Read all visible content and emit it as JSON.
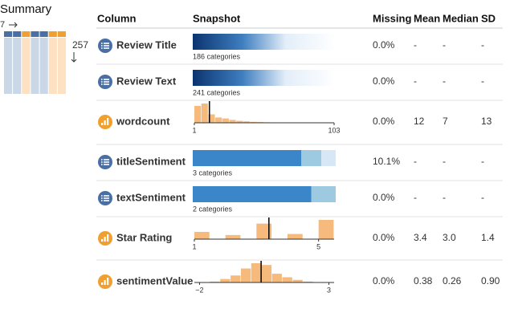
{
  "summary": {
    "title": "Summary",
    "columns": "7",
    "rows": "257"
  },
  "header": [
    "Column",
    "Snapshot",
    "Missing",
    "Mean",
    "Median",
    "SD"
  ],
  "colors": {
    "categorical": "#4a6fa5",
    "numeric": "#f0a030",
    "categorical_light": "#c9d7e6",
    "numeric_light": "#fde1c2",
    "histogram": "#f5ba7c",
    "segments": [
      "#3a86c8",
      "#9ecae1",
      "#d8e7f5"
    ]
  },
  "rows": [
    {
      "name": "Review Title",
      "type": "categorical",
      "categories_label": "186 categories",
      "missing": "0.0%",
      "mean": "-",
      "median": "-",
      "sd": "-"
    },
    {
      "name": "Review Text",
      "type": "categorical",
      "categories_label": "241 categories",
      "missing": "0.0%",
      "mean": "-",
      "median": "-",
      "sd": "-"
    },
    {
      "name": "wordcount",
      "type": "numeric",
      "missing": "0.0%",
      "mean": 12,
      "median": 7,
      "sd": 13,
      "xlim": [
        1,
        103
      ],
      "xticks": [
        1,
        103
      ],
      "bins": [
        1,
        6.1,
        11.2,
        16.3,
        21.4,
        26.5,
        31.6,
        36.7,
        41.8,
        46.9,
        52,
        57.1,
        62.2,
        67.3,
        72.4,
        77.5,
        82.6,
        87.7,
        92.8,
        97.9,
        103
      ],
      "counts": [
        70,
        80,
        35,
        22,
        18,
        12,
        8,
        6,
        4,
        3,
        2,
        1,
        1,
        1,
        0,
        0,
        0,
        0,
        0,
        1
      ]
    },
    {
      "name": "titleSentiment",
      "type": "categorical",
      "categories_label": "3 categories",
      "shares": [
        76,
        14,
        10
      ],
      "missing": "10.1%",
      "mean": "-",
      "median": "-",
      "sd": "-"
    },
    {
      "name": "textSentiment",
      "type": "categorical",
      "categories_label": "2 categories",
      "shares": [
        83,
        17
      ],
      "missing": "0.0%",
      "mean": "-",
      "median": "-",
      "sd": "-"
    },
    {
      "name": "Star Rating",
      "type": "numeric",
      "missing": "0.0%",
      "mean": 3.4,
      "median": {
        "value": 3,
        "label": "3.0"
      },
      "sd": 1.4,
      "xlim": [
        1,
        5.5
      ],
      "xticks": [
        1,
        5
      ],
      "bins": [
        1,
        1.5,
        2,
        2.5,
        3,
        3.5,
        4,
        4.5,
        5,
        5.5
      ],
      "counts": [
        35,
        0,
        20,
        0,
        75,
        0,
        25,
        0,
        93
      ]
    },
    {
      "name": "sentimentValue",
      "type": "numeric",
      "missing": "0.0%",
      "mean": 0.38,
      "median": 0.26,
      "sd": {
        "value": 0.9,
        "label": "0.90"
      },
      "xlim": [
        -2.2,
        3.2
      ],
      "xticks": [
        {
          "value": -2,
          "label": "−2"
        },
        3
      ],
      "bins": [
        -1.6,
        -1.2,
        -0.8,
        -0.4,
        0,
        0.4,
        0.8,
        1.2,
        1.6,
        2,
        2.4
      ],
      "counts": [
        1,
        4,
        8,
        16,
        22,
        20,
        10,
        6,
        3,
        1
      ]
    }
  ]
}
